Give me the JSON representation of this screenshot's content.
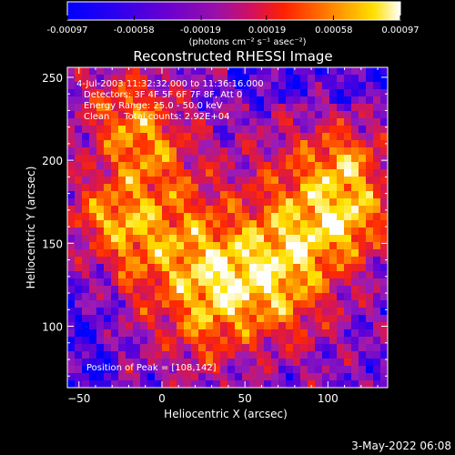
{
  "colors": {
    "background": "#000000",
    "text": "#ffffff",
    "colormap": [
      "#0000ff",
      "#5a00d8",
      "#9b1bb6",
      "#d8164d",
      "#ff2a00",
      "#ff8800",
      "#ffe400",
      "#ffffff"
    ]
  },
  "colorbar": {
    "ticks": [
      "-0.00097",
      "-0.00058",
      "-0.00019",
      "0.00019",
      "0.00058",
      "0.00097"
    ],
    "values": [
      -0.00097,
      -0.00058,
      -0.00019,
      0.00019,
      0.00058,
      0.00097
    ],
    "unit_text": "(photons cm⁻² s⁻¹ asec⁻²)"
  },
  "chart_data": {
    "type": "heatmap",
    "title": "Reconstructed RHESSI Image",
    "xlabel": "Heliocentric X (arcsec)",
    "ylabel": "Heliocentric Y (arcsec)",
    "xlim": [
      -57,
      136
    ],
    "ylim": [
      63,
      256
    ],
    "xticks": [
      -50,
      0,
      50,
      100
    ],
    "yticks": [
      100,
      150,
      200,
      250
    ],
    "xtick_labels": [
      "−50",
      "0",
      "50",
      "100"
    ],
    "ytick_labels": [
      "100",
      "150",
      "200",
      "250"
    ],
    "zlim": [
      -0.00097,
      0.00097
    ],
    "grid": false,
    "peak": [
      108,
      142
    ],
    "annotations": [
      "4-Jul-2003 11:32:32.000 to 11:36:16.000",
      "Detectors: 3F 4F 5F 6F 7F 8F, Att 0",
      "Energy Range: 25.0 - 50.0 keV",
      "Clean     Total counts: 2.92E+04",
      "Position of Peak = [108,142]"
    ]
  },
  "footer": {
    "date": "3-May-2022 06:08"
  }
}
